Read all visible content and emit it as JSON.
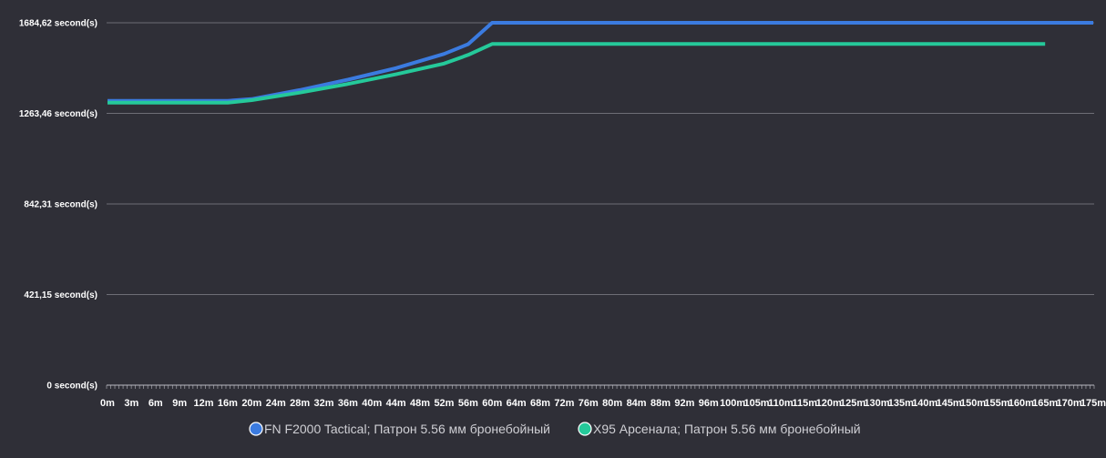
{
  "chart_data": {
    "type": "line",
    "title": "",
    "xlabel": "",
    "ylabel": "",
    "y_ticks": [
      {
        "value": 0,
        "label": "0 second(s)"
      },
      {
        "value": 421.15,
        "label": "421,15 second(s)"
      },
      {
        "value": 842.31,
        "label": "842,31 second(s)"
      },
      {
        "value": 1263.46,
        "label": "1263,46 second(s)"
      },
      {
        "value": 1684.62,
        "label": "1684,62 second(s)"
      }
    ],
    "ylim": [
      0,
      1684.62
    ],
    "x_labels": [
      "0m",
      "3m",
      "6m",
      "9m",
      "12m",
      "16m",
      "20m",
      "24m",
      "28m",
      "32m",
      "36m",
      "40m",
      "44m",
      "48m",
      "52m",
      "56m",
      "60m",
      "64m",
      "68m",
      "72m",
      "76m",
      "80m",
      "84m",
      "88m",
      "92m",
      "96m",
      "100m",
      "105m",
      "110m",
      "115m",
      "120m",
      "125m",
      "130m",
      "135m",
      "140m",
      "145m",
      "150m",
      "155m",
      "160m",
      "165m",
      "170m",
      "175m"
    ],
    "grid": true,
    "legend_position": "bottom",
    "series": [
      {
        "name": "FN F2000 Tactical; Патрон 5.56 мм бронебойный",
        "color": "#3b7be0",
        "points": [
          [
            0,
            1322
          ],
          [
            16,
            1322
          ],
          [
            20,
            1330
          ],
          [
            28,
            1372
          ],
          [
            36,
            1420
          ],
          [
            44,
            1474
          ],
          [
            52,
            1540
          ],
          [
            56,
            1585
          ],
          [
            60,
            1684.62
          ],
          [
            175,
            1684.62
          ]
        ]
      },
      {
        "name": "X95 Арсенала; Патрон 5.56 мм бронебойный",
        "color": "#25c99a",
        "points": [
          [
            0,
            1313
          ],
          [
            16,
            1313
          ],
          [
            20,
            1325
          ],
          [
            28,
            1360
          ],
          [
            36,
            1400
          ],
          [
            44,
            1445
          ],
          [
            52,
            1495
          ],
          [
            56,
            1535
          ],
          [
            60,
            1586
          ],
          [
            165,
            1586
          ]
        ]
      }
    ]
  }
}
